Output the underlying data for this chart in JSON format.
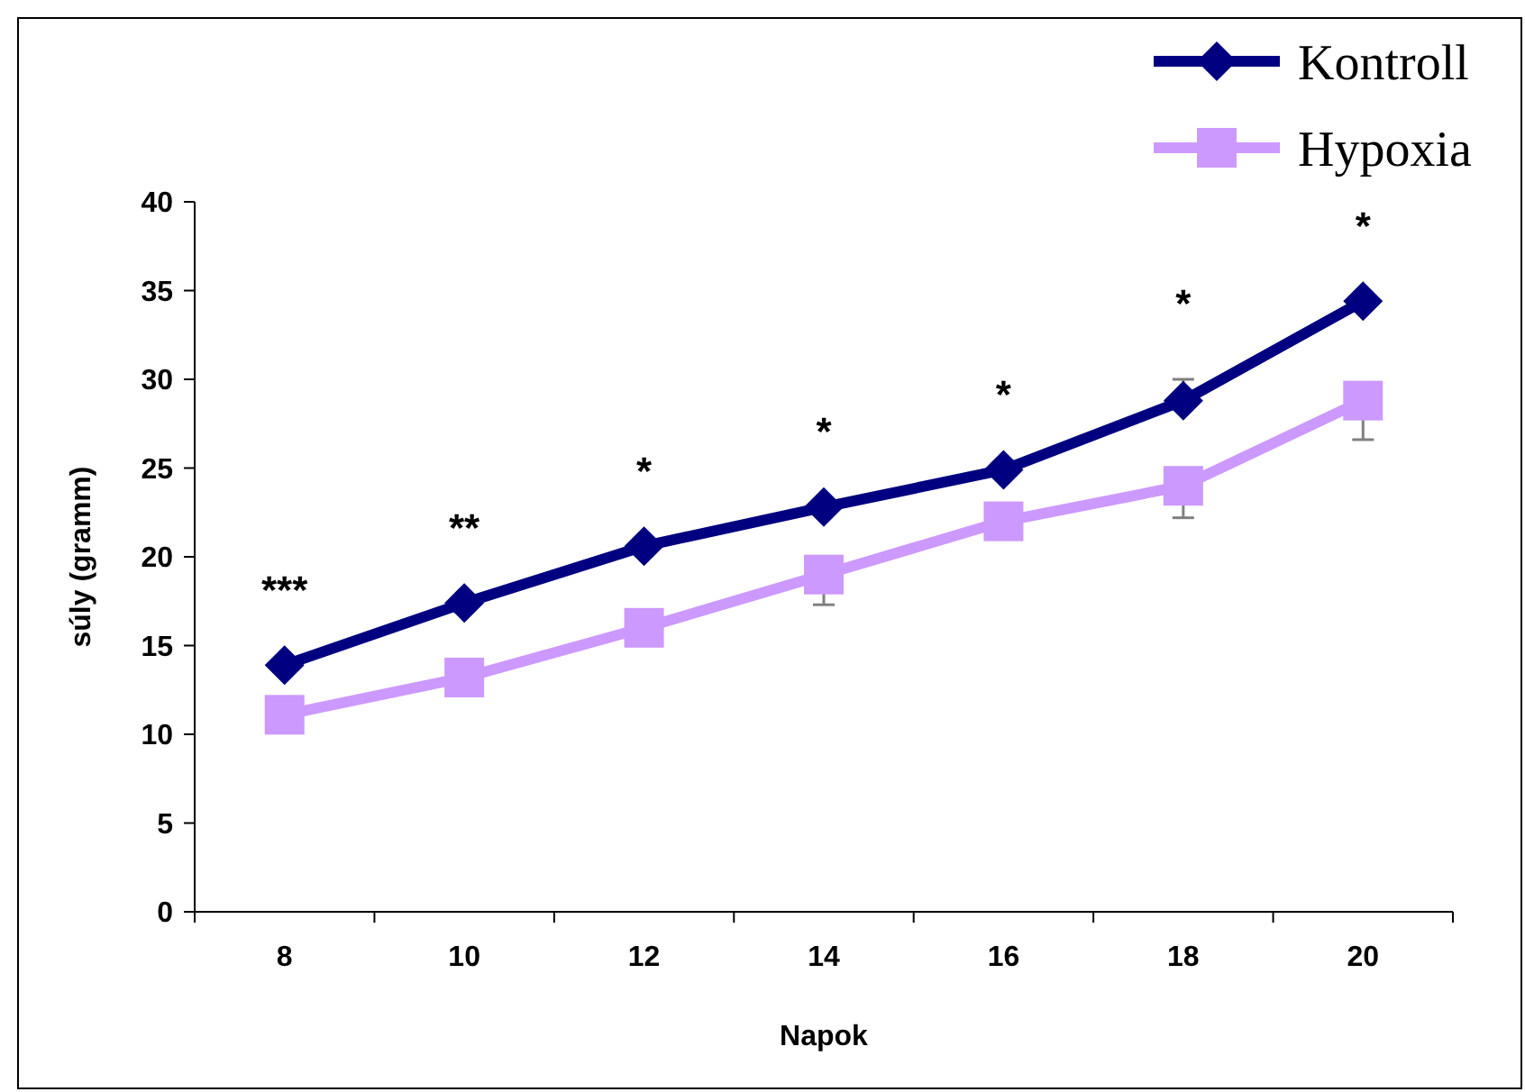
{
  "chart_data": {
    "type": "line",
    "xlabel": "Napok",
    "ylabel": "súly (gramm)",
    "categories": [
      "8",
      "10",
      "12",
      "14",
      "16",
      "18",
      "20"
    ],
    "series": [
      {
        "name": "Kontroll",
        "color": "#000080",
        "marker": "diamond",
        "values": [
          13.9,
          17.4,
          20.6,
          22.8,
          24.9,
          28.8,
          34.4
        ],
        "errors": [
          null,
          null,
          null,
          null,
          null,
          [
            28.8,
            30.0
          ],
          null
        ]
      },
      {
        "name": "Hypoxia",
        "color": "#cc99ff",
        "marker": "square",
        "values": [
          11.1,
          13.2,
          16.0,
          19.0,
          22.0,
          24.0,
          28.8
        ],
        "errors": [
          null,
          null,
          null,
          [
            17.3,
            19.0
          ],
          null,
          [
            22.2,
            24.0
          ],
          [
            26.6,
            28.8
          ]
        ]
      }
    ],
    "ylim": [
      0,
      40
    ],
    "yticks": [
      0,
      5,
      10,
      15,
      20,
      25,
      30,
      35,
      40
    ],
    "grid": false,
    "legend": "top right",
    "annotations": [
      "***",
      "**",
      "*",
      "*",
      "*",
      "*",
      "*"
    ]
  }
}
